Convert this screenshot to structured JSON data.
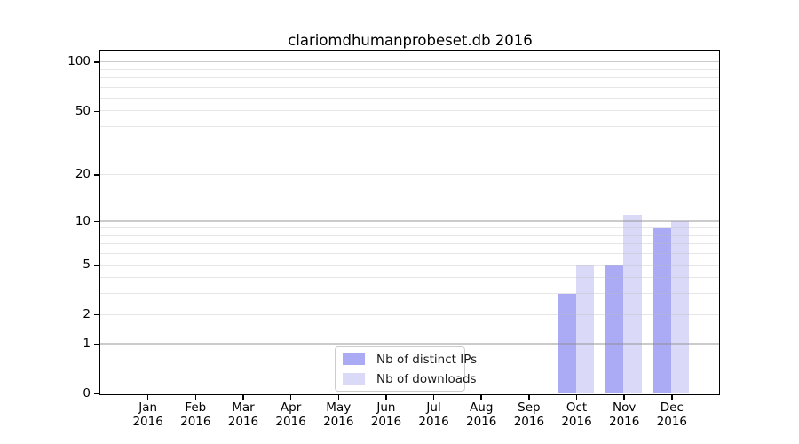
{
  "title": "clariomdhumanprobeset.db 2016",
  "chart_data": {
    "type": "bar",
    "title": "clariomdhumanprobeset.db 2016",
    "categories": [
      "Jan",
      "Feb",
      "Mar",
      "Apr",
      "May",
      "Jun",
      "Jul",
      "Aug",
      "Sep",
      "Oct",
      "Nov",
      "Dec"
    ],
    "year_label": "2016",
    "series": [
      {
        "name": "Nb of distinct IPs",
        "color": "#aaaaf5",
        "values": [
          0,
          0,
          0,
          0,
          0,
          0,
          0,
          0,
          0,
          3,
          5,
          9
        ]
      },
      {
        "name": "Nb of downloads",
        "color": "#dadaf8",
        "values": [
          0,
          0,
          0,
          0,
          0,
          0,
          0,
          0,
          0,
          5,
          11,
          10
        ]
      }
    ],
    "yscale": "log10(1+y)",
    "ylim": [
      0,
      117
    ],
    "yticks": [
      0,
      1,
      2,
      5,
      10,
      20,
      50,
      100
    ],
    "ytick_labels": [
      "0",
      "1",
      "2",
      "5",
      "10",
      "20",
      "50",
      "100"
    ],
    "major_grid_values": [
      1,
      10,
      100
    ],
    "minor_grid_values": [
      2,
      3,
      4,
      5,
      6,
      7,
      8,
      9,
      20,
      30,
      40,
      50,
      60,
      70,
      80,
      90
    ],
    "grid": true,
    "legend_position": "inside-bottom-center"
  },
  "colors": {
    "background": "#ffffff",
    "spine": "#000000",
    "bar_distinct_ips": "#aaaaf5",
    "bar_downloads": "#dadaf8",
    "major_grid": "#c6c6c6",
    "minor_grid": "#ececec",
    "text": "#000000",
    "legend_border": "#cccccc"
  }
}
